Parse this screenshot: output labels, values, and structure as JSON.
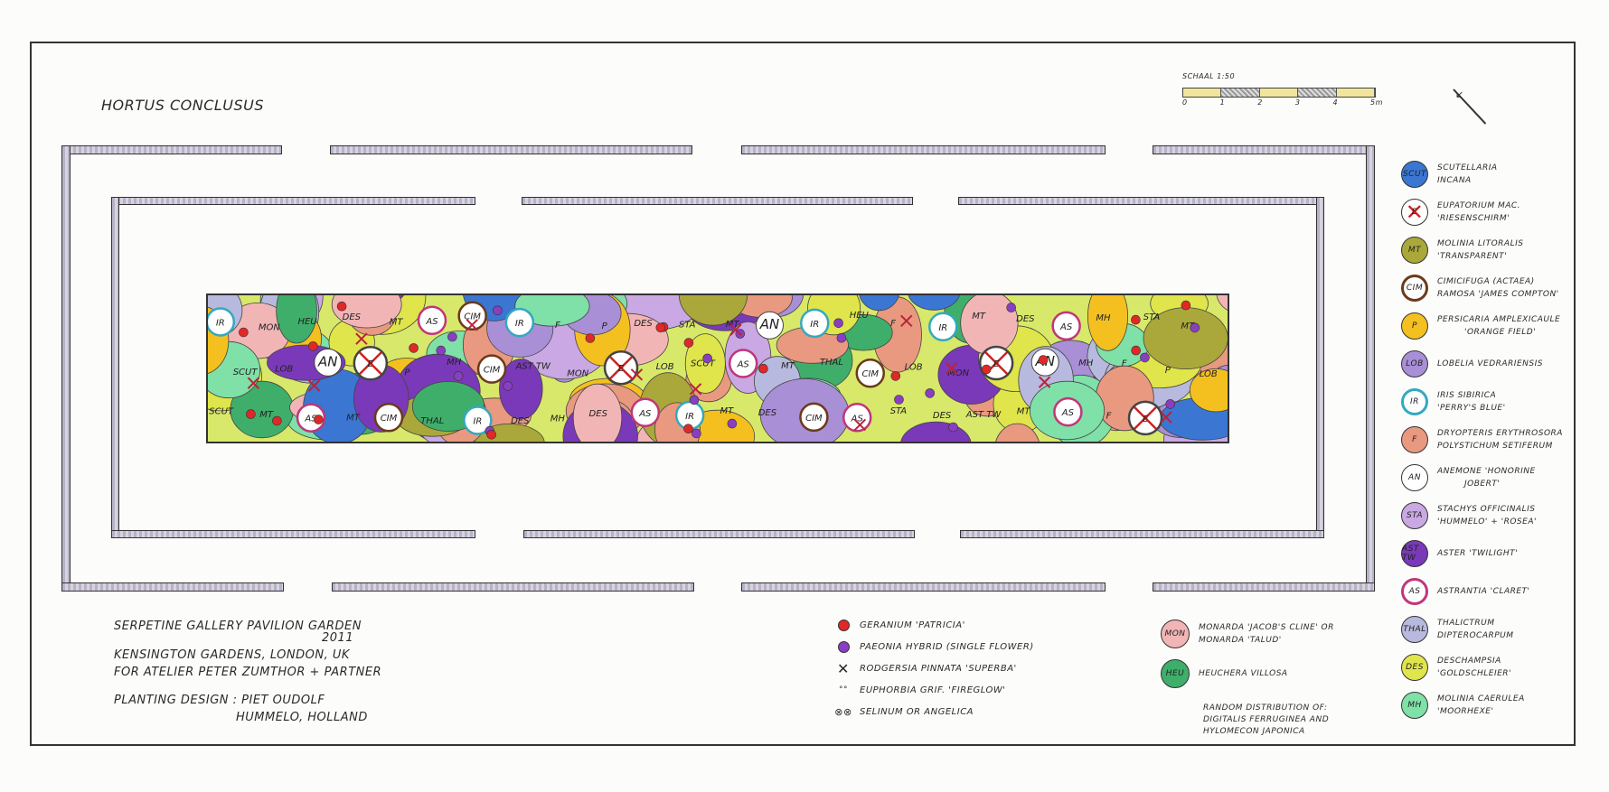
{
  "title": "HORTUS CONCLUSUS",
  "scale": {
    "label": "SCHAAL 1:50",
    "ticks": [
      "0",
      "1",
      "2",
      "3",
      "4",
      "5m"
    ]
  },
  "legend": [
    {
      "code": "SCUT",
      "lines": [
        "SCUTELLARIA",
        "INCANA"
      ],
      "color": "#3a76d2"
    },
    {
      "code": "E",
      "lines": [
        "EUPATORIUM MAC.",
        "'RIESENSCHIRM'"
      ],
      "color": "#ffffff"
    },
    {
      "code": "MT",
      "lines": [
        "MOLINIA LITORALIS",
        "'TRANSPARENT'"
      ],
      "color": "#aaa83a"
    },
    {
      "code": "CIM",
      "lines": [
        "CIMICIFUGA (ACTAEA)",
        "RAMOSA 'JAMES COMPTON'"
      ],
      "color": "#ffffff"
    },
    {
      "code": "P",
      "lines": [
        "PERSICARIA AMPLEXICAULE",
        "'ORANGE FIELD'"
      ],
      "color": "#f4c020"
    },
    {
      "code": "LOB",
      "lines": [
        "LOBELIA VEDRARIENSIS"
      ],
      "color": "#a98fd6"
    },
    {
      "code": "IR",
      "lines": [
        "IRIS SIBIRICA",
        "'PERRY'S BLUE'"
      ],
      "color": "#ffffff"
    },
    {
      "code": "F",
      "lines": [
        "DRYOPTERIS ERYTHROSORA",
        "POLYSTICHUM SETIFERUM"
      ],
      "color": "#e89980"
    },
    {
      "code": "AN",
      "lines": [
        "ANEMONE 'HONORINE",
        "JOBERT'"
      ],
      "color": "#ffffff"
    },
    {
      "code": "STA",
      "lines": [
        "STACHYS OFFICINALIS",
        "'HUMMELO' + 'ROSEA'"
      ],
      "color": "#c9a8e3"
    },
    {
      "code": "AST TW",
      "lines": [
        "ASTER 'TWILIGHT'"
      ],
      "color": "#7a39b8"
    },
    {
      "code": "AS",
      "lines": [
        "ASTRANTIA 'CLARET'"
      ],
      "color": "#ffffff"
    },
    {
      "code": "THAL",
      "lines": [
        "THALICTRUM",
        "DIPTEROCARPUM"
      ],
      "color": "#b7b9de"
    },
    {
      "code": "DES",
      "lines": [
        "DESCHAMPSIA",
        "'GOLDSCHLEIER'"
      ],
      "color": "#dfe54a"
    },
    {
      "code": "MH",
      "lines": [
        "MOLINIA CAERULEA",
        "'MOORHEXE'"
      ],
      "color": "#7fe0a8"
    }
  ],
  "project": {
    "lines": [
      "SERPETINE GALLERY PAVILION GARDEN",
      "2011",
      "KENSINGTON GARDENS, LONDON, UK",
      "FOR ATELIER PETER ZUMTHOR + PARTNER"
    ],
    "design_lines": [
      "PLANTING DESIGN : PIET OUDOLF",
      "HUMMELO, HOLLAND"
    ]
  },
  "symbols": [
    {
      "text": "GERANIUM 'PATRICIA'",
      "icon": "red-dot",
      "color": "#e02828"
    },
    {
      "text": "PAEONIA HYBRID   (SINGLE FLOWER)",
      "icon": "purple-dot",
      "color": "#8a3fc2"
    },
    {
      "text": "RODGERSIA PINNATA 'SUPERBA'",
      "icon": "cross"
    },
    {
      "text": "EUPHORBIA GRIF. 'FIREGLOW'",
      "icon": "small-circles"
    },
    {
      "text": "SELINUM OR ANGELICA",
      "icon": "crossed-circles"
    }
  ],
  "extra_legend": [
    {
      "code": "MON",
      "lines": [
        "MONARDA 'JACOB'S CLINE' OR",
        "MONARDA 'TALUD'"
      ],
      "color": "#f2b5b5"
    },
    {
      "code": "HEU",
      "lines": [
        "HEUCHERA VILLOSA"
      ],
      "color": "#3fae6a"
    }
  ],
  "random_note": [
    "RANDOM DISTRIBUTION OF:",
    "DIGITALIS FERRUGINEA AND",
    "HYLOMECON JAPONICA"
  ],
  "bed_labels": [
    "IR",
    "MON",
    "HEU",
    "DES",
    "MT",
    "AS",
    "CIM",
    "IR",
    "F",
    "P",
    "DES",
    "STA",
    "MT",
    "AN",
    "IR",
    "HEU",
    "F",
    "IR",
    "MT",
    "DES",
    "AS",
    "MH",
    "STA",
    "MT",
    "SCUT",
    "LOB",
    "AN",
    "E",
    "P",
    "MH",
    "CIM",
    "AST TW",
    "MON",
    "E",
    "LOB",
    "SCUT",
    "AS",
    "MT",
    "THAL",
    "CIM",
    "LOB",
    "MON",
    "E",
    "AN",
    "MH",
    "F",
    "P",
    "LOB",
    "SCUT",
    "MT",
    "AS",
    "MT",
    "CIM",
    "THAL",
    "IR",
    "DES",
    "MH",
    "DES",
    "AS",
    "IR",
    "MT",
    "DES",
    "CIM",
    "AS",
    "STA",
    "DES",
    "AST TW",
    "MT",
    "AS",
    "F",
    "E"
  ]
}
